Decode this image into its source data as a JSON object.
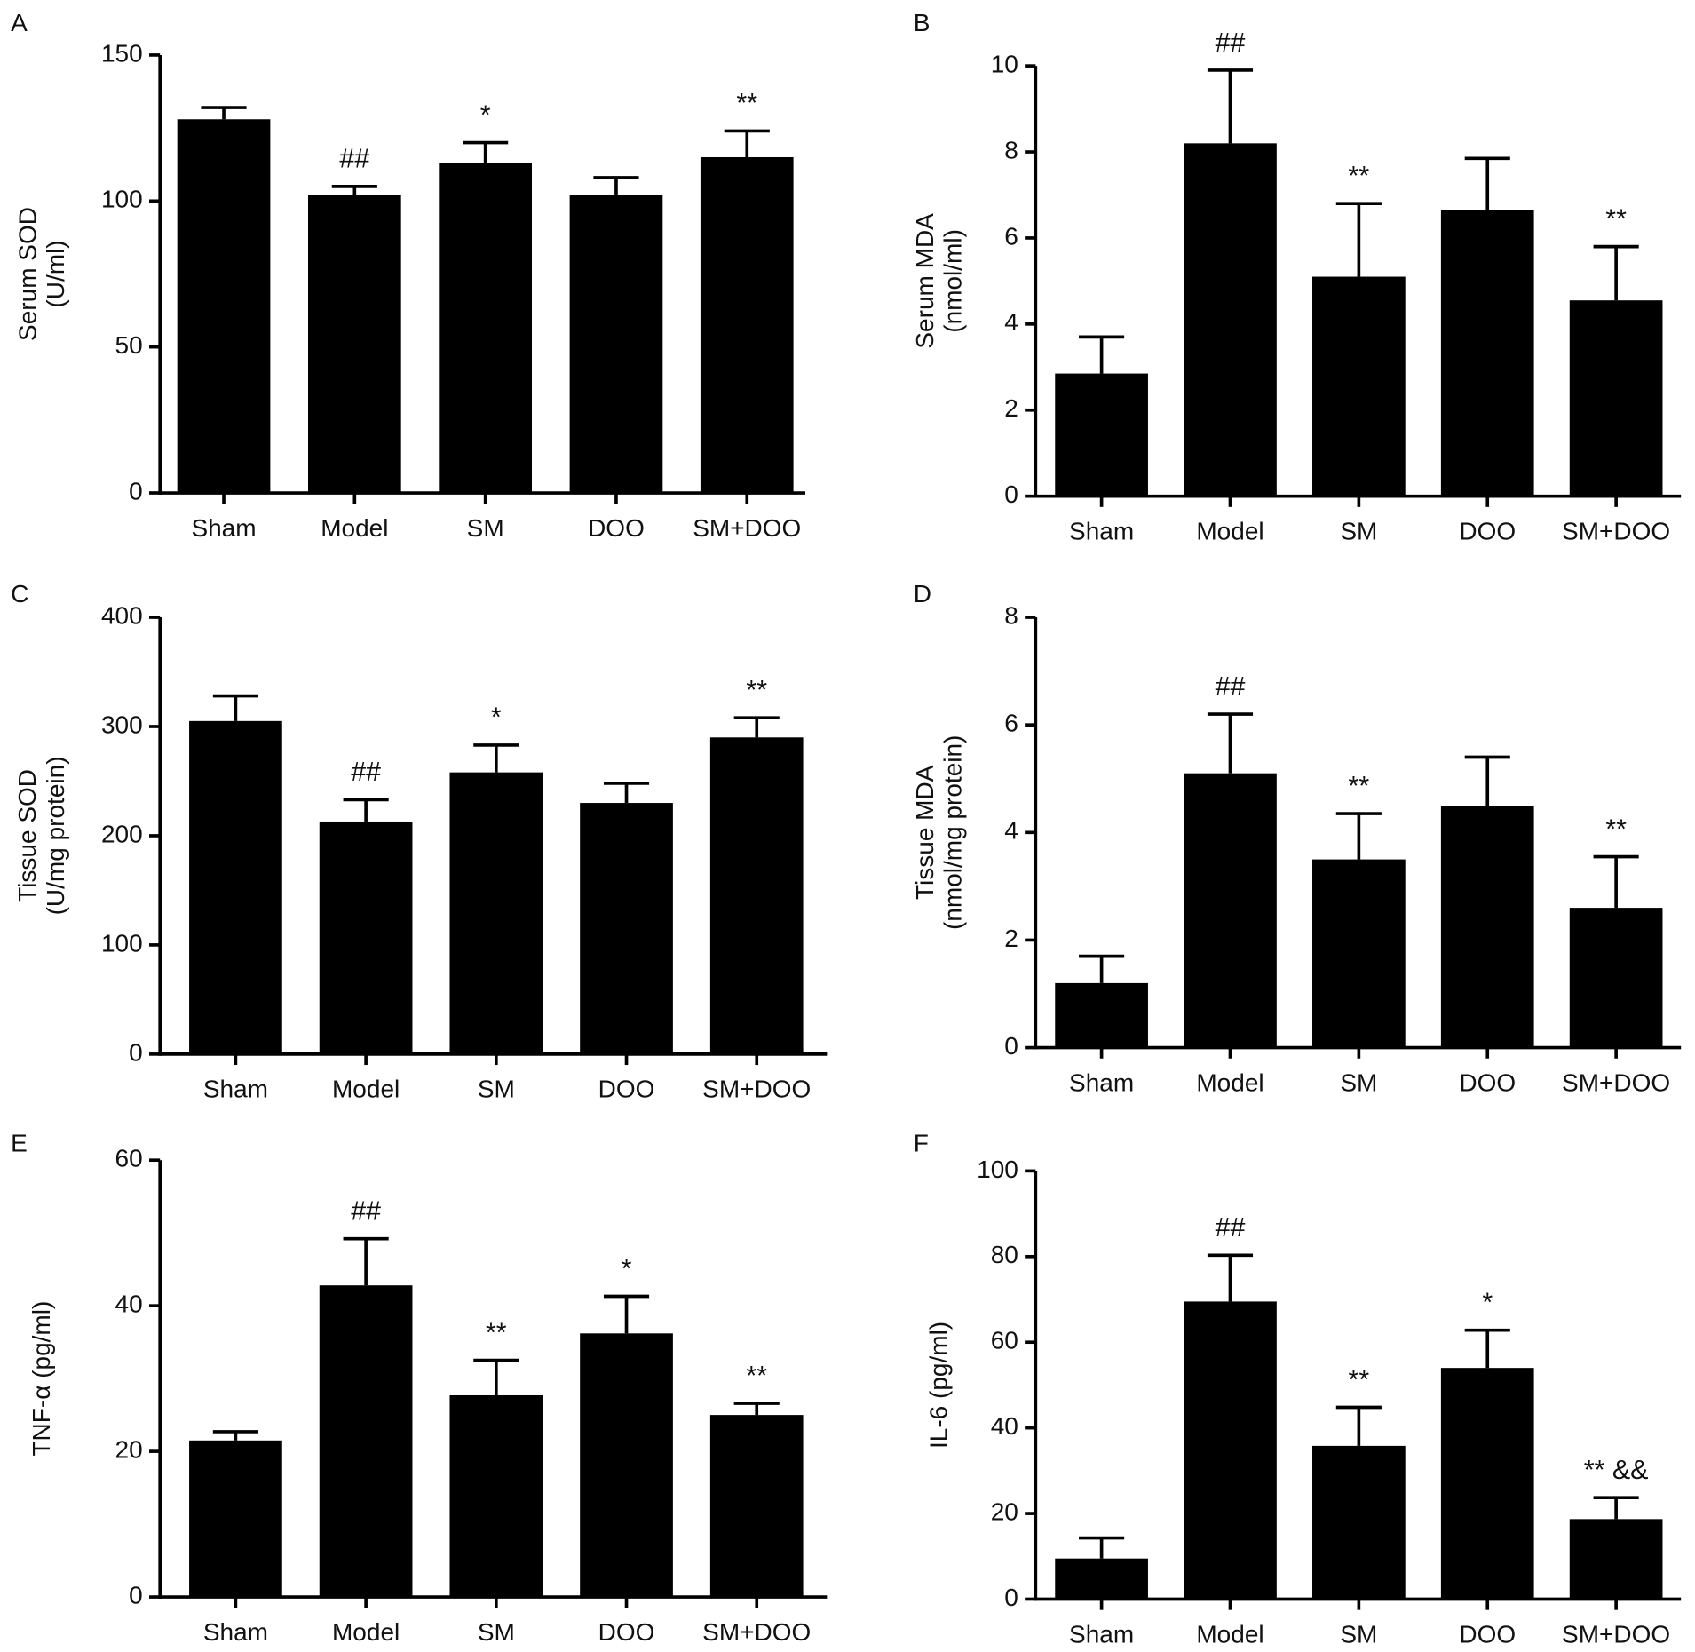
{
  "chart_data": [
    {
      "type": "bar",
      "panel": "A",
      "ylabel": [
        "Serum SOD",
        "(U/ml)"
      ],
      "categories": [
        "Sham",
        "Model",
        "SM",
        "DOO",
        "SM+DOO"
      ],
      "values": [
        128,
        102,
        113,
        102,
        115
      ],
      "errors": [
        4,
        3,
        7,
        6,
        9
      ],
      "annotations": [
        null,
        "##",
        "*",
        null,
        "**"
      ],
      "color": "#000000",
      "ylim": [
        0,
        150
      ],
      "yticks": [
        0,
        50,
        100,
        150
      ]
    },
    {
      "type": "bar",
      "panel": "B",
      "ylabel": [
        "Serum MDA",
        "(nmol/ml)"
      ],
      "categories": [
        "Sham",
        "Model",
        "SM",
        "DOO",
        "SM+DOO"
      ],
      "values": [
        2.85,
        8.2,
        5.1,
        6.65,
        4.55
      ],
      "errors": [
        0.85,
        1.7,
        1.7,
        1.2,
        1.25
      ],
      "annotations": [
        null,
        "##",
        "**",
        null,
        "**"
      ],
      "color": "#000000",
      "ylim": [
        0,
        10
      ],
      "yticks": [
        0,
        2,
        4,
        6,
        8,
        10
      ]
    },
    {
      "type": "bar",
      "panel": "C",
      "ylabel": [
        "Tissue SOD",
        "(U/mg protein)"
      ],
      "categories": [
        "Sham",
        "Model",
        "SM",
        "DOO",
        "SM+DOO"
      ],
      "values": [
        305,
        213,
        258,
        230,
        290
      ],
      "errors": [
        23,
        20,
        25,
        18,
        18
      ],
      "annotations": [
        null,
        "##",
        "*",
        null,
        "**"
      ],
      "color": "#000000",
      "ylim": [
        0,
        400
      ],
      "yticks": [
        0,
        100,
        200,
        300,
        400
      ]
    },
    {
      "type": "bar",
      "panel": "D",
      "ylabel": [
        "Tissue MDA",
        "(nmol/mg protein)"
      ],
      "categories": [
        "Sham",
        "Model",
        "SM",
        "DOO",
        "SM+DOO"
      ],
      "values": [
        1.2,
        5.1,
        3.5,
        4.5,
        2.6
      ],
      "errors": [
        0.5,
        1.1,
        0.85,
        0.9,
        0.95
      ],
      "annotations": [
        null,
        "##",
        "**",
        null,
        "**"
      ],
      "color": "#000000",
      "ylim": [
        0,
        8
      ],
      "yticks": [
        0,
        2,
        4,
        6,
        8
      ]
    },
    {
      "type": "bar",
      "panel": "E",
      "ylabel": [
        "TNF-α (pg/ml)"
      ],
      "categories": [
        "Sham",
        "Model",
        "SM",
        "DOO",
        "SM+DOO"
      ],
      "values": [
        21.5,
        42.8,
        27.7,
        36.2,
        25
      ],
      "errors": [
        1.2,
        6.4,
        4.8,
        5.1,
        1.6
      ],
      "annotations": [
        null,
        "##",
        "**",
        "*",
        "**"
      ],
      "color": "#000000",
      "ylim": [
        0,
        60
      ],
      "yticks": [
        0,
        20,
        40,
        60
      ]
    },
    {
      "type": "bar",
      "panel": "F",
      "ylabel": [
        "IL-6 (pg/ml)"
      ],
      "categories": [
        "Sham",
        "Model",
        "SM",
        "DOO",
        "SM+DOO"
      ],
      "values": [
        9.5,
        69.5,
        35.8,
        54,
        18.7
      ],
      "errors": [
        4.8,
        10.8,
        9,
        8.8,
        5
      ],
      "annotations": [
        null,
        "##",
        "**",
        "*",
        "** &&"
      ],
      "color": "#000000",
      "ylim": [
        0,
        100
      ],
      "yticks": [
        0,
        20,
        40,
        60,
        80,
        100
      ]
    }
  ]
}
